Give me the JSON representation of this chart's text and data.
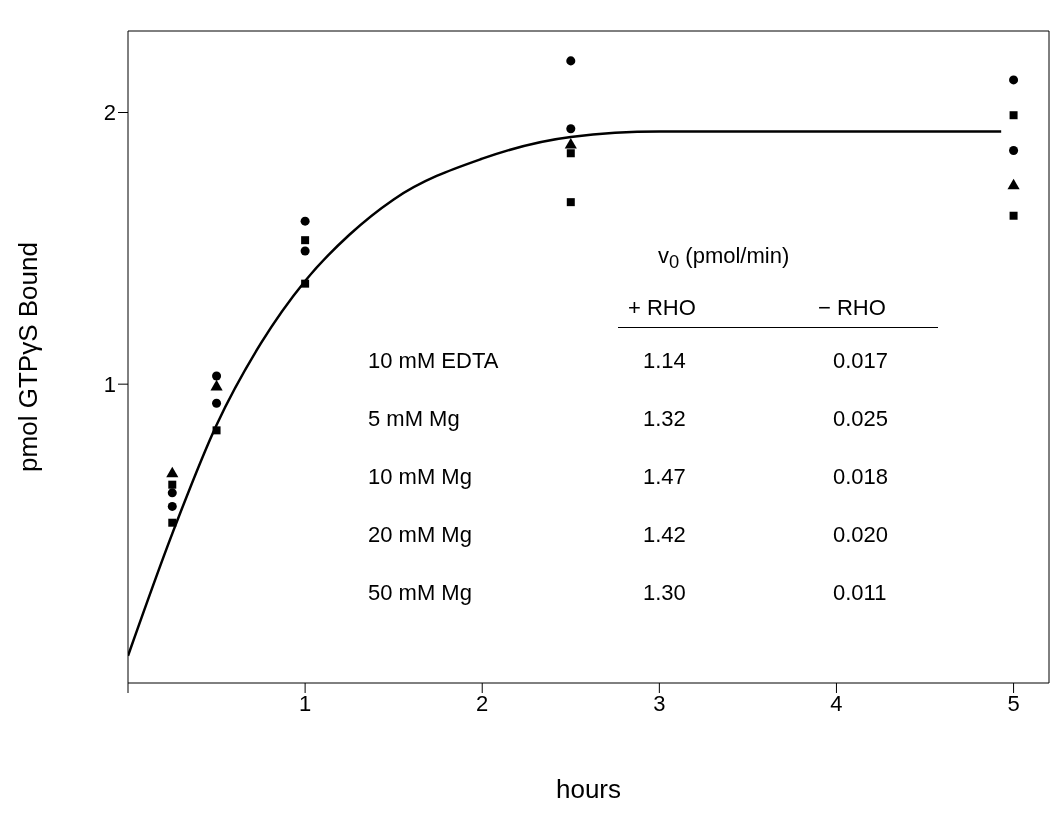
{
  "chart_data": {
    "type": "scatter",
    "xlabel": "hours",
    "ylabel": "pmol GTPγS Bound",
    "xlim": [
      0,
      5.2
    ],
    "ylim": [
      -0.1,
      2.3
    ],
    "xticks": [
      {
        "value": 0,
        "label": null
      },
      1,
      2,
      3,
      4,
      5
    ],
    "yticks": [
      1,
      2
    ],
    "x": [
      0.25,
      0.5,
      1,
      2.5,
      5
    ],
    "series": [
      {
        "color": "#000000",
        "marker": "circle",
        "values": [
          0.55,
          0.93,
          1.6,
          2.19,
          2.12
        ]
      },
      {
        "color": "#000000",
        "marker": "square",
        "values": [
          0.63,
          null,
          1.53,
          1.67,
          1.62
        ]
      },
      {
        "color": "#000000",
        "marker": "circle",
        "values": [
          0.6,
          1.03,
          1.49,
          1.94,
          1.86
        ]
      },
      {
        "color": "#000000",
        "marker": "square",
        "values": [
          0.49,
          0.83,
          1.37,
          1.85,
          1.99
        ]
      },
      {
        "color": "#000000",
        "marker": "triangle",
        "values": [
          0.67,
          0.99,
          null,
          1.88,
          1.73
        ]
      },
      {
        "type": "line",
        "color": "#000000",
        "marker": "none",
        "line_style": "solid",
        "x": [
          0,
          0.25,
          0.5,
          0.75,
          1,
          1.25,
          1.5,
          2,
          2.5,
          3,
          4.93
        ],
        "values": [
          0,
          0.45,
          0.85,
          1.15,
          1.38,
          1.55,
          1.68,
          1.83,
          1.91,
          1.93,
          1.93
        ]
      }
    ],
    "annotations": [
      "v$_{0}$  (pmol/min)",
      "+ RHO",
      "− RHO",
      "10 mM EDTA",
      "1.14",
      "0.017",
      "5 mM Mg",
      "1.32",
      "0.025",
      "10 mM Mg",
      "1.47",
      "0.018",
      "20 mM Mg",
      "1.42",
      "0.020",
      "50 mM Mg",
      "1.30",
      "0.011"
    ]
  }
}
